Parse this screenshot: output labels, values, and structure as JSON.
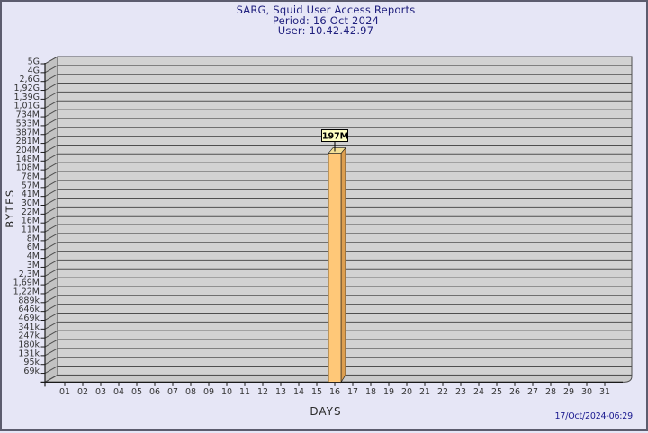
{
  "header": {
    "title": "SARG, Squid User Access Reports",
    "period_line": "Period: 16 Oct 2024",
    "user_line": "User: 10.42.42.97"
  },
  "footer": {
    "timestamp": "17/Oct/2024-06:29"
  },
  "chart_data": {
    "type": "bar",
    "title": "SARG, Squid User Access Reports",
    "subtitle": [
      "Period: 16 Oct 2024",
      "User: 10.42.42.97"
    ],
    "xlabel": "DAYS",
    "ylabel": "BYTES",
    "x_tick_labels": [
      "01",
      "02",
      "03",
      "04",
      "05",
      "06",
      "07",
      "08",
      "09",
      "10",
      "11",
      "12",
      "13",
      "14",
      "15",
      "16",
      "17",
      "18",
      "19",
      "20",
      "21",
      "22",
      "23",
      "24",
      "25",
      "26",
      "27",
      "28",
      "29",
      "30",
      "31"
    ],
    "y_tick_labels": [
      "5G",
      "4G",
      "2,6G",
      "1,92G",
      "1,39G",
      "1,01G",
      "734M",
      "533M",
      "387M",
      "281M",
      "204M",
      "148M",
      "108M",
      "78M",
      "57M",
      "41M",
      "30M",
      "22M",
      "16M",
      "11M",
      "8M",
      "6M",
      "4M",
      "3M",
      "2,3M",
      "1,69M",
      "1,22M",
      "889k",
      "646k",
      "469k",
      "341k",
      "247k",
      "180k",
      "131k",
      "95k",
      "69k"
    ],
    "y_scale": "log",
    "grid": true,
    "legend": false,
    "bars": [
      {
        "day": "16",
        "value_label": "197M"
      }
    ]
  },
  "colors": {
    "background": "#E6E6F6",
    "frame_border": "#5C5C6E",
    "plot_fill": "#D2D2D2",
    "wall_fill": "#C2C2C2",
    "floor_fill": "#CACACA",
    "grid_line": "#4F4F4F",
    "axis_line": "#1A1A1A",
    "tick_text": "#333333",
    "axis_label_text": "#2B2B2B",
    "title_text": "#20207E",
    "timestamp_text": "#19198F",
    "bar_front": "#FFC878",
    "bar_side": "#DD9F50",
    "bar_top": "#F2DF96",
    "callout_fill": "#FFFFC4",
    "callout_border": "#000000",
    "callout_text": "#000000"
  }
}
